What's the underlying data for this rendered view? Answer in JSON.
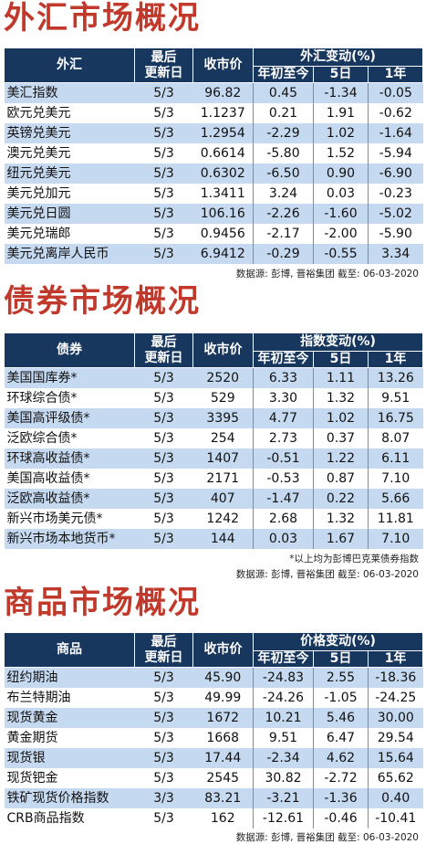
{
  "fx": {
    "title": "外汇市场概况",
    "headers": {
      "name": "外汇",
      "updated_1": "最后",
      "updated_2": "更新日",
      "close": "收市价",
      "change": "外汇变动(%)",
      "ytd": "年初至今",
      "d5": "5日",
      "y1": "1年"
    },
    "rows": [
      {
        "name": "美汇指数",
        "date": "5/3",
        "close": "96.82",
        "ytd": "0.45",
        "d5": "-1.34",
        "y1": "-0.05"
      },
      {
        "name": "欧元兑美元",
        "date": "5/3",
        "close": "1.1237",
        "ytd": "0.21",
        "d5": "1.91",
        "y1": "-0.62"
      },
      {
        "name": "英镑兑美元",
        "date": "5/3",
        "close": "1.2954",
        "ytd": "-2.29",
        "d5": "1.02",
        "y1": "-1.64"
      },
      {
        "name": "澳元兑美元",
        "date": "5/3",
        "close": "0.6614",
        "ytd": "-5.80",
        "d5": "1.52",
        "y1": "-5.94"
      },
      {
        "name": "纽元兑美元",
        "date": "5/3",
        "close": "0.6302",
        "ytd": "-6.50",
        "d5": "0.90",
        "y1": "-6.90"
      },
      {
        "name": "美元兑加元",
        "date": "5/3",
        "close": "1.3411",
        "ytd": "3.24",
        "d5": "0.03",
        "y1": "-0.23"
      },
      {
        "name": "美元兑日圆",
        "date": "5/3",
        "close": "106.16",
        "ytd": "-2.26",
        "d5": "-1.60",
        "y1": "-5.02"
      },
      {
        "name": "美元兑瑞郎",
        "date": "5/3",
        "close": "0.9456",
        "ytd": "-2.17",
        "d5": "-2.00",
        "y1": "-5.90"
      },
      {
        "name": "美元兑离岸人民币",
        "date": "5/3",
        "close": "6.9412",
        "ytd": "-0.29",
        "d5": "-0.55",
        "y1": "3.34"
      }
    ],
    "source": "数据源: 彭博, 晋裕集团 截至: 06-03-2020"
  },
  "bond": {
    "title": "债券市场概况",
    "headers": {
      "name": "债券",
      "updated_1": "最后",
      "updated_2": "更新日",
      "close": "收市价",
      "change": "指数变动(%)",
      "ytd": "年初至今",
      "d5": "5日",
      "y1": "1年"
    },
    "rows": [
      {
        "name": "美国国库券*",
        "date": "5/3",
        "close": "2520",
        "ytd": "6.33",
        "d5": "1.11",
        "y1": "13.26"
      },
      {
        "name": "环球综合债*",
        "date": "5/3",
        "close": "529",
        "ytd": "3.30",
        "d5": "1.32",
        "y1": "9.51"
      },
      {
        "name": "美国高评级债*",
        "date": "5/3",
        "close": "3395",
        "ytd": "4.77",
        "d5": "1.02",
        "y1": "16.75"
      },
      {
        "name": "泛欧综合债*",
        "date": "5/3",
        "close": "254",
        "ytd": "2.73",
        "d5": "0.37",
        "y1": "8.07"
      },
      {
        "name": "环球高收益债*",
        "date": "5/3",
        "close": "1407",
        "ytd": "-0.51",
        "d5": "1.22",
        "y1": "6.11"
      },
      {
        "name": "美国高收益债*",
        "date": "5/3",
        "close": "2171",
        "ytd": "-0.53",
        "d5": "0.87",
        "y1": "7.10"
      },
      {
        "name": "泛欧高收益债*",
        "date": "5/3",
        "close": "407",
        "ytd": "-1.47",
        "d5": "0.22",
        "y1": "5.66"
      },
      {
        "name": "新兴市场美元债*",
        "date": "5/3",
        "close": "1242",
        "ytd": "2.68",
        "d5": "1.32",
        "y1": "11.81"
      },
      {
        "name": "新兴市场本地货币*",
        "date": "5/3",
        "close": "144",
        "ytd": "0.03",
        "d5": "1.67",
        "y1": "7.10"
      }
    ],
    "note": "*以上均为彭博巴克莱债券指数",
    "source": "数据源: 彭博, 晋裕集团 截至: 06-03-2020"
  },
  "commodity": {
    "title": "商品市场概况",
    "headers": {
      "name": "商品",
      "updated_1": "最后",
      "updated_2": "更新日",
      "close": "收市价",
      "change": "价格变动(%)",
      "ytd": "年初至今",
      "d5": "5日",
      "y1": "1年"
    },
    "rows": [
      {
        "name": "纽约期油",
        "date": "5/3",
        "close": "45.90",
        "ytd": "-24.83",
        "d5": "2.55",
        "y1": "-18.36"
      },
      {
        "name": "布兰特期油",
        "date": "5/3",
        "close": "49.99",
        "ytd": "-24.26",
        "d5": "-1.05",
        "y1": "-24.25"
      },
      {
        "name": "现货黄金",
        "date": "5/3",
        "close": "1672",
        "ytd": "10.21",
        "d5": "5.46",
        "y1": "30.00"
      },
      {
        "name": "黄金期货",
        "date": "5/3",
        "close": "1668",
        "ytd": "9.51",
        "d5": "6.47",
        "y1": "29.54"
      },
      {
        "name": "现货银",
        "date": "5/3",
        "close": "17.44",
        "ytd": "-2.34",
        "d5": "4.62",
        "y1": "15.64"
      },
      {
        "name": "现货钯金",
        "date": "5/3",
        "close": "2545",
        "ytd": "30.82",
        "d5": "-2.72",
        "y1": "65.62"
      },
      {
        "name": "铁矿现货价格指数",
        "date": "3/3",
        "close": "83.21",
        "ytd": "-3.21",
        "d5": "-1.36",
        "y1": "0.40"
      },
      {
        "name": "CRB商品指数",
        "date": "5/3",
        "close": "162",
        "ytd": "-12.61",
        "d5": "-0.46",
        "y1": "-10.41"
      }
    ],
    "source": "数据源: 彭博, 晋裕集团 截至: 06-03-2020"
  },
  "colors": {
    "title": "#c0392b",
    "header_bg": "#17375e",
    "stripe": "#c5d9f1"
  }
}
